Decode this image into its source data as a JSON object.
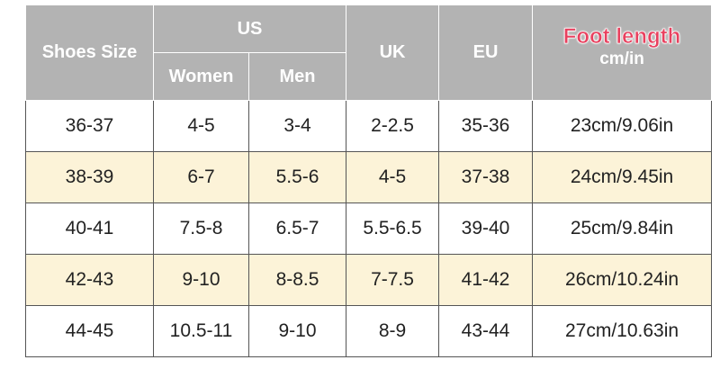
{
  "header": {
    "shoes_size": "Shoes Size",
    "us": "US",
    "women": "Women",
    "men": "Men",
    "uk": "UK",
    "eu": "EU",
    "foot_length": "Foot length",
    "foot_unit": "cm/in"
  },
  "table": {
    "rows": [
      [
        "36-37",
        "4-5",
        "3-4",
        "2-2.5",
        "35-36",
        "23cm/9.06in"
      ],
      [
        "38-39",
        "6-7",
        "5.5-6",
        "4-5",
        "37-38",
        "24cm/9.45in"
      ],
      [
        "40-41",
        "7.5-8",
        "6.5-7",
        "5.5-6.5",
        "39-40",
        "25cm/9.84in"
      ],
      [
        "42-43",
        "9-10",
        "8-8.5",
        "7-7.5",
        "41-42",
        "26cm/10.24in"
      ],
      [
        "44-45",
        "10.5-11",
        "9-10",
        "8-9",
        "43-44",
        "27cm/10.63in"
      ]
    ]
  }
}
